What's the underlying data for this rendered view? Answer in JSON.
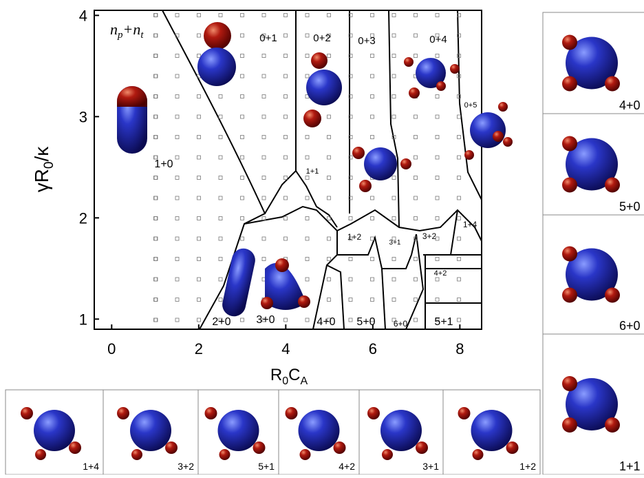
{
  "chart_data": {
    "type": "phase-diagram",
    "xlabel": [
      "R",
      "0",
      "C",
      "A"
    ],
    "ylabel": [
      "γR",
      "0",
      "/κ"
    ],
    "corner_label": [
      "n",
      "p",
      "+n",
      "t"
    ],
    "xlim": [
      -0.4,
      8.5
    ],
    "ylim": [
      0.9,
      4.05
    ],
    "xticks": [
      0,
      2,
      4,
      6,
      8
    ],
    "yticks": [
      1,
      2,
      3,
      4
    ],
    "region_labels": [
      "0+1",
      "0+2",
      "0+3",
      "0+4",
      "0+5",
      "1+0",
      "1+1",
      "1+2",
      "2+0",
      "3+0",
      "3+1",
      "3+2",
      "4+0",
      "4+2",
      "5+0",
      "5+1",
      "6+0",
      "1+4"
    ]
  },
  "panels": {
    "bottom": [
      "1+4",
      "3+2",
      "5+1",
      "4+2",
      "3+1",
      "1+2"
    ],
    "right": [
      "4+0",
      "5+0",
      "6+0",
      "1+1"
    ]
  }
}
